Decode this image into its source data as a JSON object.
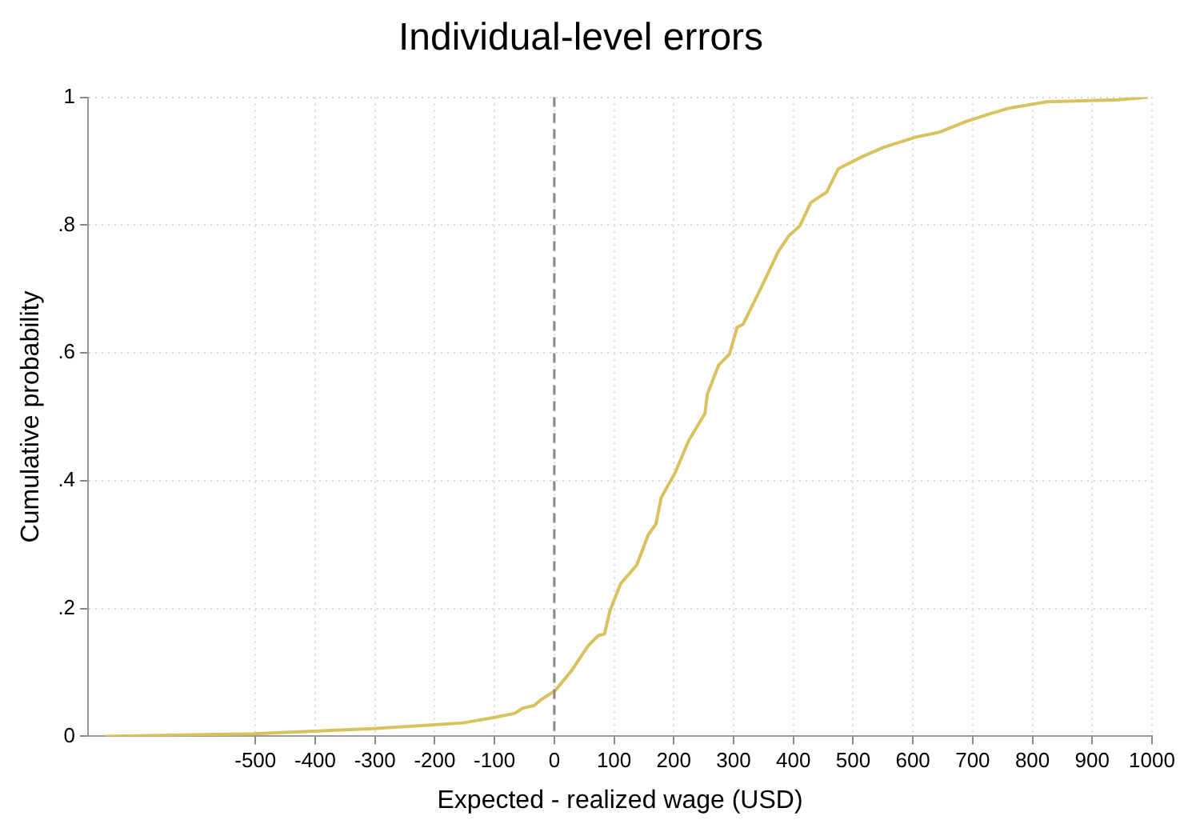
{
  "chart_data": {
    "type": "line",
    "title": "Individual-level errors",
    "xlabel": "Expected - realized wage (USD)",
    "ylabel": "Cumulative probability",
    "xlim": [
      -780,
      1000
    ],
    "xticks": [
      -500,
      -400,
      -300,
      -200,
      -100,
      0,
      100,
      200,
      300,
      400,
      500,
      600,
      700,
      800,
      900,
      1000
    ],
    "ylim": [
      0,
      1
    ],
    "yticks": [
      0,
      {
        "value": 0.2,
        "label": ".2"
      },
      {
        "value": 0.4,
        "label": ".4"
      },
      {
        "value": 0.6,
        "label": ".6"
      },
      {
        "value": 0.8,
        "label": ".8"
      },
      1
    ],
    "grid": true,
    "legend": false,
    "marker": "none",
    "line_style": "solid",
    "ref_lines": [
      {
        "axis": "x",
        "value": 0,
        "color": "#888888",
        "line_style": "dashed"
      }
    ],
    "series": [
      {
        "color": "#d9c25e",
        "x": [
          -753,
          -503,
          -303,
          -153,
          -98,
          -66,
          -53,
          -34,
          -21,
          2,
          29,
          56,
          74,
          84,
          93,
          111,
          138,
          157,
          170,
          179,
          202,
          225,
          252,
          256,
          275,
          293,
          306,
          316,
          347,
          375,
          393,
          411,
          429,
          456,
          475,
          515,
          552,
          606,
          643,
          689,
          725,
          761,
          824,
          943,
          993
        ],
        "values": [
          0,
          0.004,
          0.012,
          0.021,
          0.03,
          0.036,
          0.044,
          0.048,
          0.058,
          0.072,
          0.103,
          0.141,
          0.158,
          0.16,
          0.196,
          0.239,
          0.268,
          0.315,
          0.332,
          0.374,
          0.412,
          0.463,
          0.505,
          0.535,
          0.581,
          0.598,
          0.64,
          0.645,
          0.704,
          0.759,
          0.784,
          0.799,
          0.835,
          0.852,
          0.888,
          0.907,
          0.922,
          0.938,
          0.945,
          0.962,
          0.973,
          0.983,
          0.993,
          0.996,
          1
        ]
      }
    ]
  }
}
